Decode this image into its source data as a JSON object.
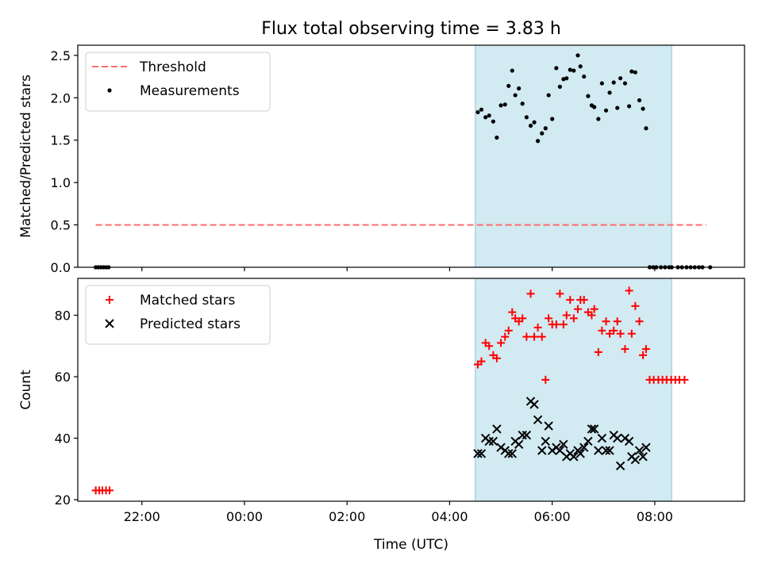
{
  "chart_data": {
    "title": "Flux total observing time = 3.83 h",
    "xlabel": "Time (UTC)",
    "x_tick_labels": [
      "22:00",
      "00:00",
      "02:00",
      "04:00",
      "06:00",
      "08:00"
    ],
    "x_tick_values_h": [
      22,
      24,
      26,
      28,
      30,
      32
    ],
    "xlim_h": [
      20.75,
      33.75
    ],
    "observing_window_h": [
      28.5,
      32.33
    ],
    "window_color": "#add8e6",
    "panels": [
      {
        "type": "scatter",
        "ylabel": "Matched/Predicted stars",
        "ylim": [
          0,
          2.62
        ],
        "y_ticks": [
          0,
          0.5,
          1.0,
          1.5,
          2.0,
          2.5
        ],
        "y_tick_labels": [
          "0.0",
          "0.5",
          "1.0",
          "1.5",
          "2.0",
          "2.5"
        ],
        "legend_position": "upper-left",
        "threshold": {
          "name": "Threshold",
          "value": 0.5,
          "x_range_h": [
            21.1,
            33.0
          ],
          "color": "#ff6b6b"
        },
        "series": [
          {
            "name": "Measurements",
            "marker": "dot",
            "color": "#000000",
            "x": [
              21.1,
              21.15,
              21.2,
              21.25,
              21.3,
              21.35,
              28.55,
              28.62,
              28.7,
              28.77,
              28.85,
              28.92,
              29.0,
              29.08,
              29.15,
              29.22,
              29.28,
              29.35,
              29.42,
              29.5,
              29.58,
              29.65,
              29.72,
              29.8,
              29.87,
              29.93,
              30.0,
              30.08,
              30.15,
              30.22,
              30.28,
              30.35,
              30.42,
              30.5,
              30.55,
              30.62,
              30.7,
              30.77,
              30.82,
              30.9,
              30.97,
              31.05,
              31.12,
              31.2,
              31.27,
              31.33,
              31.42,
              31.5,
              31.55,
              31.62,
              31.7,
              31.77,
              31.83,
              31.9,
              31.97,
              32.03,
              32.12,
              32.2,
              32.28,
              32.33,
              32.45,
              32.53,
              32.62,
              32.7,
              32.78,
              32.86,
              32.93,
              33.08
            ],
            "y": [
              0,
              0,
              0,
              0,
              0,
              0,
              1.83,
              1.86,
              1.77,
              1.79,
              1.72,
              1.53,
              1.91,
              1.92,
              2.14,
              2.32,
              2.03,
              2.11,
              1.93,
              1.77,
              1.67,
              1.71,
              1.49,
              1.58,
              1.64,
              2.03,
              1.75,
              2.35,
              2.13,
              2.22,
              2.23,
              2.33,
              2.32,
              2.5,
              2.37,
              2.25,
              2.02,
              1.91,
              1.89,
              1.75,
              2.17,
              1.85,
              2.06,
              2.18,
              1.88,
              2.23,
              2.17,
              1.9,
              2.31,
              2.3,
              1.97,
              1.87,
              1.64,
              0,
              0,
              0,
              0,
              0,
              0,
              0,
              0,
              0,
              0,
              0,
              0,
              0,
              0,
              0
            ]
          }
        ]
      },
      {
        "type": "scatter",
        "ylabel": "Count",
        "ylim": [
          19.5,
          92
        ],
        "y_ticks": [
          20,
          40,
          60,
          80
        ],
        "y_tick_labels": [
          "20",
          "40",
          "60",
          "80"
        ],
        "legend_position": "upper-left",
        "series": [
          {
            "name": "Matched stars",
            "marker": "plus",
            "color": "#ff0000",
            "x": [
              21.1,
              21.17,
              21.23,
              21.3,
              21.37,
              28.55,
              28.62,
              28.7,
              28.77,
              28.85,
              28.92,
              29.0,
              29.08,
              29.15,
              29.22,
              29.28,
              29.35,
              29.42,
              29.5,
              29.58,
              29.65,
              29.72,
              29.8,
              29.87,
              29.93,
              30.0,
              30.08,
              30.15,
              30.22,
              30.28,
              30.35,
              30.42,
              30.5,
              30.55,
              30.62,
              30.7,
              30.77,
              30.82,
              30.9,
              30.97,
              31.05,
              31.12,
              31.2,
              31.27,
              31.33,
              31.42,
              31.5,
              31.55,
              31.62,
              31.7,
              31.77,
              31.83,
              31.9,
              31.98,
              32.07,
              32.15,
              32.23,
              32.32,
              32.4,
              32.48,
              32.58
            ],
            "y": [
              23,
              23,
              23,
              23,
              23,
              64,
              65,
              71,
              70,
              67,
              66,
              71,
              73,
              75,
              81,
              79,
              78,
              79,
              73,
              87,
              73,
              76,
              73,
              59,
              79,
              77,
              77,
              87,
              77,
              80,
              85,
              79,
              82,
              85,
              85,
              81,
              80,
              82,
              68,
              75,
              78,
              74,
              75,
              78,
              74,
              69,
              88,
              74,
              83,
              78,
              67,
              69,
              59,
              59,
              59,
              59,
              59,
              59,
              59,
              59,
              59
            ]
          },
          {
            "name": "Predicted stars",
            "marker": "x",
            "color": "#000000",
            "x": [
              28.55,
              28.62,
              28.7,
              28.77,
              28.85,
              28.92,
              29.0,
              29.08,
              29.15,
              29.22,
              29.28,
              29.35,
              29.42,
              29.5,
              29.58,
              29.65,
              29.72,
              29.8,
              29.87,
              29.93,
              30.0,
              30.08,
              30.15,
              30.22,
              30.28,
              30.35,
              30.42,
              30.5,
              30.55,
              30.62,
              30.7,
              30.77,
              30.82,
              30.9,
              30.97,
              31.05,
              31.12,
              31.2,
              31.27,
              31.33,
              31.42,
              31.5,
              31.55,
              31.62,
              31.7,
              31.77,
              31.83
            ],
            "y": [
              35,
              35,
              40,
              39,
              39,
              43,
              37,
              36,
              35,
              35,
              39,
              38,
              41,
              41,
              52,
              51,
              46,
              36,
              39,
              44,
              36,
              37,
              36,
              38,
              34,
              35,
              34,
              36,
              35,
              37,
              39,
              43,
              43,
              36,
              40,
              36,
              36,
              41,
              40,
              31,
              40,
              39,
              34,
              33,
              36,
              34,
              37
            ]
          }
        ]
      }
    ]
  }
}
